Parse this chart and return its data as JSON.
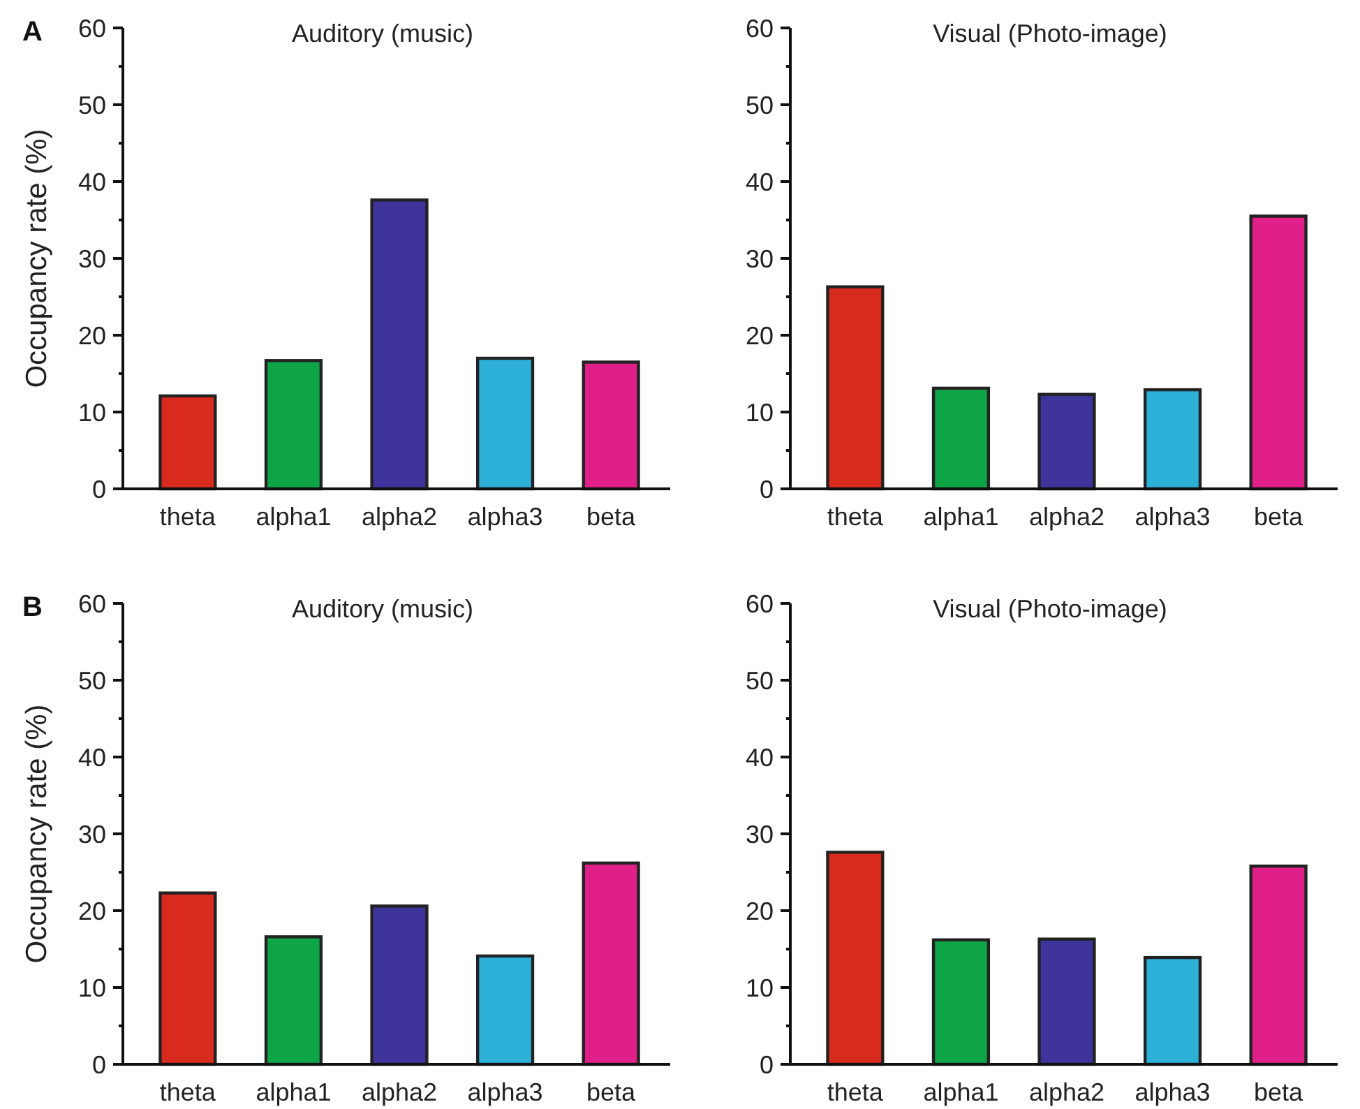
{
  "chart_data": [
    {
      "type": "bar",
      "title": "Auditory (music)",
      "ylabel": "Occupancy rate (%)",
      "annotations": [
        "A"
      ],
      "categories": [
        "theta",
        "alpha1",
        "alpha2",
        "alpha3",
        "beta"
      ],
      "values": [
        12.1,
        16.7,
        37.6,
        17.0,
        16.5
      ],
      "colors": [
        "#d92a1e",
        "#0ea547",
        "#3f339c",
        "#2cb0d8",
        "#e01f88"
      ],
      "ylim": [
        0,
        60
      ],
      "yticks": [
        0,
        {
          "value": 5,
          "label": null
        },
        10,
        {
          "value": 15,
          "label": null
        },
        20,
        {
          "value": 25,
          "label": null
        },
        30,
        {
          "value": 35,
          "label": null
        },
        40,
        {
          "value": 45,
          "label": null
        },
        50,
        {
          "value": 55,
          "label": null
        },
        60
      ]
    },
    {
      "type": "bar",
      "title": "Visual (Photo-image)",
      "categories": [
        "theta",
        "alpha1",
        "alpha2",
        "alpha3",
        "beta"
      ],
      "values": [
        26.3,
        13.1,
        12.3,
        12.9,
        35.5
      ],
      "colors": [
        "#d92a1e",
        "#0ea547",
        "#3f339c",
        "#2cb0d8",
        "#e01f88"
      ],
      "ylim": [
        0,
        60
      ],
      "yticks": [
        0,
        {
          "value": 5,
          "label": null
        },
        10,
        {
          "value": 15,
          "label": null
        },
        20,
        {
          "value": 25,
          "label": null
        },
        30,
        {
          "value": 35,
          "label": null
        },
        40,
        {
          "value": 45,
          "label": null
        },
        50,
        {
          "value": 55,
          "label": null
        },
        60
      ]
    },
    {
      "type": "bar",
      "title": "Auditory (music)",
      "ylabel": "Occupancy rate (%)",
      "annotations": [
        "B"
      ],
      "categories": [
        "theta",
        "alpha1",
        "alpha2",
        "alpha3",
        "beta"
      ],
      "values": [
        22.3,
        16.6,
        20.6,
        14.1,
        26.2
      ],
      "colors": [
        "#d92a1e",
        "#0ea547",
        "#3f339c",
        "#2cb0d8",
        "#e01f88"
      ],
      "ylim": [
        0,
        60
      ],
      "yticks": [
        0,
        {
          "value": 5,
          "label": null
        },
        10,
        {
          "value": 15,
          "label": null
        },
        20,
        {
          "value": 25,
          "label": null
        },
        30,
        {
          "value": 35,
          "label": null
        },
        40,
        {
          "value": 45,
          "label": null
        },
        50,
        {
          "value": 55,
          "label": null
        },
        60
      ]
    },
    {
      "type": "bar",
      "title": "Visual (Photo-image)",
      "categories": [
        "theta",
        "alpha1",
        "alpha2",
        "alpha3",
        "beta"
      ],
      "values": [
        27.6,
        16.2,
        16.3,
        13.9,
        25.8
      ],
      "colors": [
        "#d92a1e",
        "#0ea547",
        "#3f339c",
        "#2cb0d8",
        "#e01f88"
      ],
      "ylim": [
        0,
        60
      ],
      "yticks": [
        0,
        {
          "value": 5,
          "label": null
        },
        10,
        {
          "value": 15,
          "label": null
        },
        20,
        {
          "value": 25,
          "label": null
        },
        30,
        {
          "value": 35,
          "label": null
        },
        40,
        {
          "value": 45,
          "label": null
        },
        50,
        {
          "value": 55,
          "label": null
        },
        60
      ]
    }
  ]
}
